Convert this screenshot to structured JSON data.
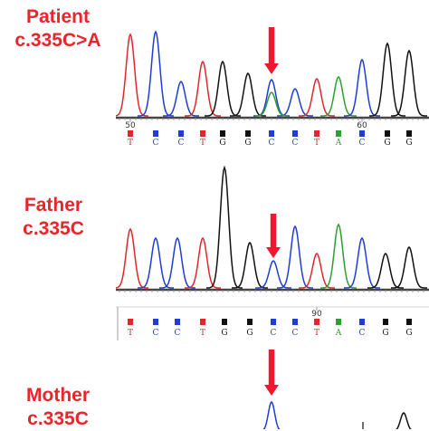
{
  "colors": {
    "label": "#e8262a",
    "arrow": "#f0182f",
    "A": "#2ca02c",
    "C": "#1f3dd6",
    "G": "#111111",
    "T": "#e3262c"
  },
  "panels": [
    {
      "id": "patient",
      "name_line": "Patient",
      "variant_line": "c.335C>A",
      "position_labels": [
        {
          "text": "50",
          "base_index": 0
        },
        {
          "text": "60",
          "base_index": 10
        }
      ],
      "sequence": [
        "T",
        "C",
        "C",
        "T",
        "G",
        "G",
        "C",
        "C",
        "T",
        "A",
        "C",
        "G",
        "G"
      ],
      "arrow_base_index": 6,
      "heterozygous_base_index": 6,
      "secondary_base": "A"
    },
    {
      "id": "father",
      "name_line": "Father",
      "variant_line": "c.335C",
      "position_labels": [
        {
          "text": "90",
          "base_index": 8
        }
      ],
      "sequence": [
        "T",
        "C",
        "C",
        "T",
        "G",
        "G",
        "C",
        "C",
        "T",
        "A",
        "C",
        "G",
        "G"
      ],
      "arrow_base_index": 6
    },
    {
      "id": "mother",
      "name_line": "Mother",
      "variant_line": "c.335C",
      "arrow_base_index": 6
    }
  ]
}
